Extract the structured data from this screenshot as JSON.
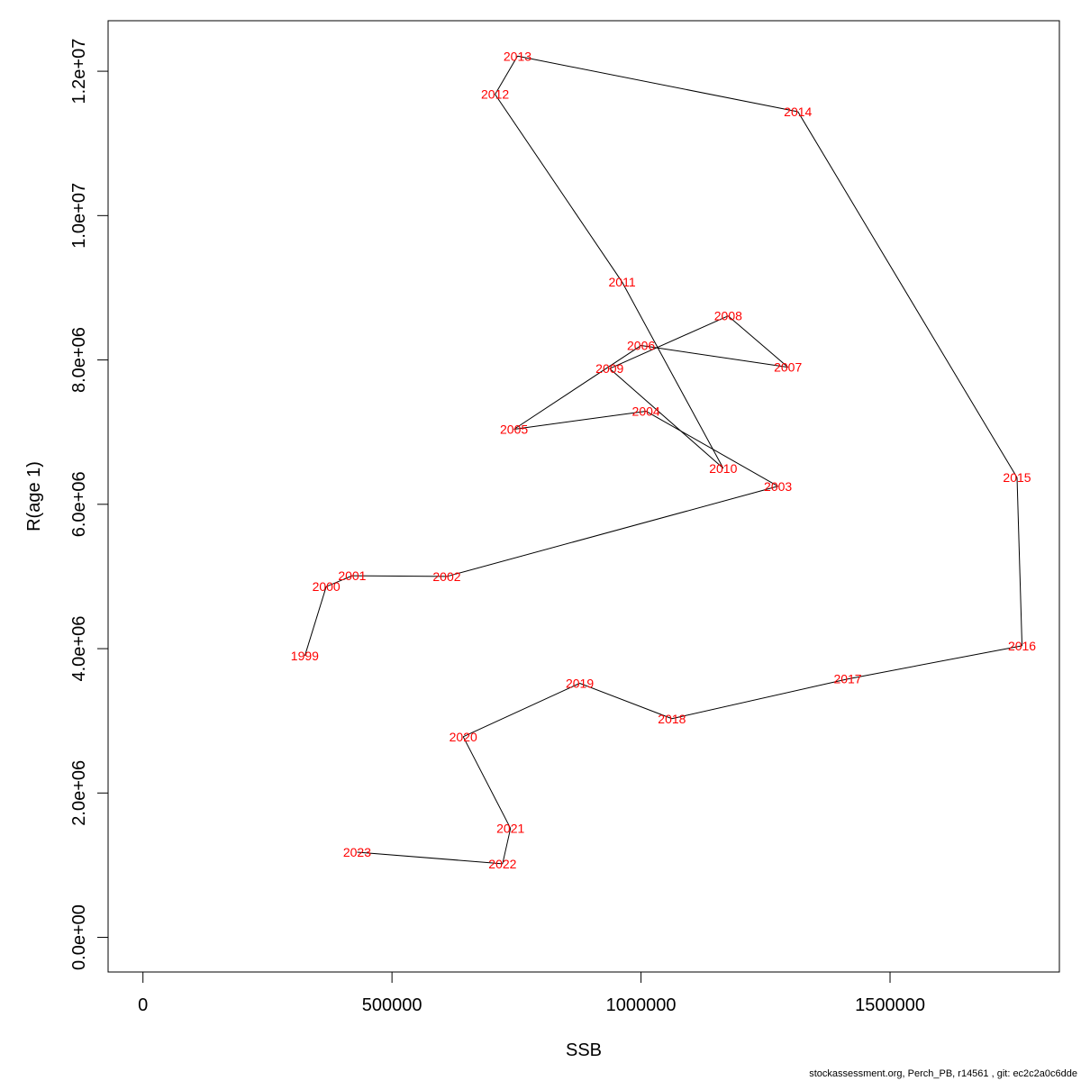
{
  "footer_text": "stockassessment.org, Perch_PB, r14561 , git: ec2c2a0c6dde",
  "chart_data": {
    "type": "scatter",
    "xlabel": "SSB",
    "ylabel": "R(age 1)",
    "xlim": [
      -70000,
      1840000
    ],
    "ylim": [
      -480000,
      12700000
    ],
    "xticks": [
      0,
      500000,
      1000000,
      1500000
    ],
    "xtick_labels": [
      "0",
      "500000",
      "1000000",
      "1500000"
    ],
    "yticks": [
      0,
      2000000,
      4000000,
      6000000,
      8000000,
      10000000,
      12000000
    ],
    "ytick_labels": [
      "0.0e+00",
      "2.0e+06",
      "4.0e+06",
      "6.0e+06",
      "8.0e+06",
      "1.0e+07",
      "1.2e+07"
    ],
    "grid": false,
    "line_color": "#000000",
    "label_color": "#ff0000",
    "points": [
      {
        "year": "1999",
        "x": 325000,
        "y": 3900000
      },
      {
        "year": "2000",
        "x": 368000,
        "y": 4860000
      },
      {
        "year": "2001",
        "x": 420000,
        "y": 5010000
      },
      {
        "year": "2002",
        "x": 610000,
        "y": 5000000
      },
      {
        "year": "2003",
        "x": 1275000,
        "y": 6250000
      },
      {
        "year": "2004",
        "x": 1010000,
        "y": 7290000
      },
      {
        "year": "2005",
        "x": 745000,
        "y": 7040000
      },
      {
        "year": "2006",
        "x": 1000000,
        "y": 8200000
      },
      {
        "year": "2007",
        "x": 1295000,
        "y": 7900000
      },
      {
        "year": "2008",
        "x": 1175000,
        "y": 8610000
      },
      {
        "year": "2009",
        "x": 937000,
        "y": 7880000
      },
      {
        "year": "2010",
        "x": 1165000,
        "y": 6500000
      },
      {
        "year": "2011",
        "x": 962000,
        "y": 9080000
      },
      {
        "year": "2012",
        "x": 707000,
        "y": 11680000
      },
      {
        "year": "2013",
        "x": 752000,
        "y": 12210000
      },
      {
        "year": "2014",
        "x": 1315000,
        "y": 11440000
      },
      {
        "year": "2015",
        "x": 1755000,
        "y": 6370000
      },
      {
        "year": "2016",
        "x": 1765000,
        "y": 4040000
      },
      {
        "year": "2017",
        "x": 1415000,
        "y": 3580000
      },
      {
        "year": "2018",
        "x": 1062000,
        "y": 3030000
      },
      {
        "year": "2019",
        "x": 877000,
        "y": 3520000
      },
      {
        "year": "2020",
        "x": 643000,
        "y": 2780000
      },
      {
        "year": "2021",
        "x": 738000,
        "y": 1510000
      },
      {
        "year": "2022",
        "x": 722000,
        "y": 1020000
      },
      {
        "year": "2023",
        "x": 430000,
        "y": 1180000
      }
    ]
  }
}
